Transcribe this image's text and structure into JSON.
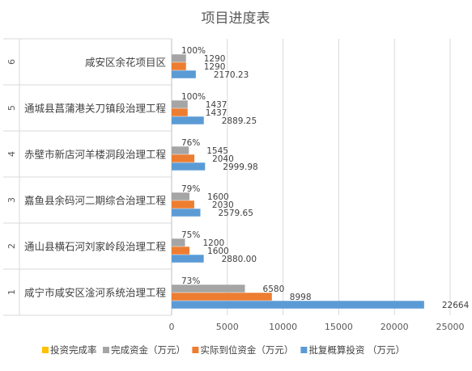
{
  "chart_data": {
    "type": "bar",
    "orientation": "horizontal",
    "title": "项目进度表",
    "xlim": [
      0,
      25000
    ],
    "xticks": [
      0,
      5000,
      10000,
      15000,
      20000,
      25000
    ],
    "grid": true,
    "legend_position": "bottom",
    "row_numbers": [
      "6",
      "5",
      "4",
      "3",
      "2",
      "1"
    ],
    "categories": [
      "咸安区余花项目区",
      "通城县菖蒲港关刀镇段治理工程",
      "赤壁市新店河羊楼洞段治理工程",
      "嘉鱼县余码河二期综合治理工程",
      "通山县横石河刘家岭段治理工程",
      "咸宁市咸安区淦河系统治理工程"
    ],
    "series": [
      {
        "name": "投资完成率",
        "color": "#FFC000",
        "values": [
          1.0,
          1.0,
          0.76,
          0.79,
          0.75,
          0.73
        ],
        "labels": [
          "100%",
          "100%",
          "76%",
          "79%",
          "75%",
          "73%"
        ]
      },
      {
        "name": "完成资金（万元）",
        "color": "#A5A5A5",
        "values": [
          1290,
          1437,
          1545,
          1600,
          1200,
          6580
        ],
        "labels": [
          "1290",
          "1437",
          "1545",
          "1600",
          "1200",
          "6580"
        ]
      },
      {
        "name": "实际到位资金（万元）",
        "color": "#ED7D31",
        "values": [
          1290,
          1437,
          2040,
          2030,
          1600,
          8998
        ],
        "labels": [
          "1290",
          "1437",
          "2040",
          "2030",
          "1600",
          "8998"
        ]
      },
      {
        "name": "批复概算投资 （万元）",
        "color": "#5B9BD5",
        "values": [
          2170.23,
          2889.25,
          2999.98,
          2579.65,
          2880.0,
          22664
        ],
        "labels": [
          "2170.23",
          "2889.25",
          "2999.98",
          "2579.65",
          "2880.00",
          "22664"
        ]
      }
    ]
  }
}
